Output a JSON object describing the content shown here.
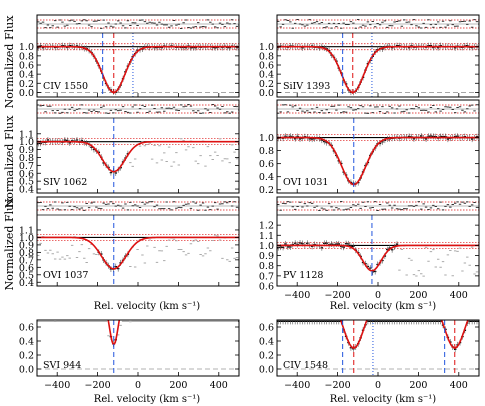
{
  "figure": {
    "ylabel": "Normalized Flux",
    "xlabel": "Rel. velocity  (km s⁻¹)"
  },
  "colors": {
    "data": "#000000",
    "model": "#dd1111",
    "residual": "#333333",
    "masked": "#aaaaaa",
    "sigma_band": "#dd1111",
    "marker_blue": "#2255dd",
    "marker_red": "#dd1111",
    "dotted_blue": "#2255dd",
    "zero_line": "#999999"
  },
  "chart_data": [
    {
      "type": "line",
      "title": "CIV 1550",
      "xlim": [
        -500,
        500
      ],
      "ylim": [
        -0.1,
        1.3
      ],
      "yticks": [
        "0.0",
        "0.2",
        "0.4",
        "0.6",
        "0.8",
        "1.0"
      ],
      "xticks": [],
      "center_v": -120,
      "width": 55,
      "depth": 1.0,
      "markers": [
        {
          "v": -175,
          "color": "blue"
        },
        {
          "v": -120,
          "color": "red"
        },
        {
          "v": -25,
          "color": "dotted"
        }
      ],
      "mask": []
    },
    {
      "type": "line",
      "title": "SiIV 1393",
      "xlim": [
        -500,
        500
      ],
      "ylim": [
        -0.1,
        1.3
      ],
      "yticks": [
        "0.0",
        "0.2",
        "0.4",
        "0.6",
        "0.8",
        "1.0"
      ],
      "xticks": [],
      "center_v": -125,
      "width": 55,
      "depth": 1.0,
      "markers": [
        {
          "v": -175,
          "color": "blue"
        },
        {
          "v": -125,
          "color": "red"
        },
        {
          "v": -30,
          "color": "dotted"
        }
      ],
      "mask": []
    },
    {
      "type": "line",
      "title": "SIV 1062",
      "xlim": [
        -500,
        500
      ],
      "ylim": [
        0.35,
        1.3
      ],
      "yticks": [
        "0.4",
        "0.5",
        "0.6",
        "0.7",
        "0.8",
        "0.9",
        "1.0",
        "1.1"
      ],
      "xticks": [],
      "center_v": -120,
      "width": 55,
      "depth": 0.38,
      "markers": [
        {
          "v": -120,
          "color": "blue"
        }
      ],
      "mask": [
        [
          -40,
          500
        ]
      ]
    },
    {
      "type": "line",
      "title": "OVI 1031",
      "xlim": [
        -500,
        500
      ],
      "ylim": [
        0.15,
        1.3
      ],
      "yticks": [
        "0.2",
        "0.4",
        "0.6",
        "0.8",
        "1.0"
      ],
      "xticks": [],
      "center_v": -120,
      "width": 60,
      "depth": 0.72,
      "markers": [
        {
          "v": -120,
          "color": "blue"
        }
      ],
      "mask": []
    },
    {
      "type": "line",
      "title": "OVI 1037",
      "xlim": [
        -500,
        500
      ],
      "ylim": [
        0.35,
        1.3
      ],
      "yticks": [
        "0.4",
        "0.5",
        "0.6",
        "0.7",
        "0.8",
        "0.9",
        "1.0",
        "1.1"
      ],
      "xticks": [],
      "center_v": -120,
      "width": 60,
      "depth": 0.42,
      "markers": [
        {
          "v": -120,
          "color": "blue"
        }
      ],
      "mask": [
        [
          -500,
          -200
        ],
        [
          -40,
          500
        ]
      ]
    },
    {
      "type": "line",
      "title": "PV 1128",
      "xlim": [
        -500,
        500
      ],
      "ylim": [
        0.6,
        1.3
      ],
      "yticks": [
        "0.6",
        "0.7",
        "0.8",
        "0.9",
        "1.0",
        "1.1",
        "1.2"
      ],
      "xticks": [
        "−400",
        "−200",
        "0",
        "200",
        "400"
      ],
      "center_v": -30,
      "width": 45,
      "depth": 0.25,
      "markers": [
        {
          "v": -30,
          "color": "blue"
        }
      ],
      "mask": [
        [
          100,
          500
        ]
      ]
    },
    {
      "type": "line",
      "title": "SVI 944",
      "xlim": [
        -500,
        500
      ],
      "ylim": [
        -0.1,
        0.7
      ],
      "yticks": [
        "0.0",
        "0.2",
        "0.4",
        "0.6"
      ],
      "xticks": [
        "−400",
        "−200",
        "0",
        "200",
        "400"
      ],
      "center_v": -120,
      "width": 22,
      "depth": 0.65,
      "markers": [
        {
          "v": -120,
          "color": "blue"
        }
      ],
      "mask": [
        [
          -500,
          -140
        ],
        [
          -100,
          500
        ]
      ]
    },
    {
      "type": "line",
      "title": "CIV 1548",
      "xlim": [
        -500,
        500
      ],
      "ylim": [
        -0.1,
        0.7
      ],
      "yticks": [
        "0.0",
        "0.2",
        "0.4",
        "0.6"
      ],
      "xticks": [
        "−400",
        "−200",
        "0",
        "200",
        "400"
      ],
      "center_v": -120,
      "width": 50,
      "depth": 0.7,
      "second_center_v": 380,
      "markers": [
        {
          "v": -175,
          "color": "blue"
        },
        {
          "v": -120,
          "color": "red"
        },
        {
          "v": -25,
          "color": "dotted"
        },
        {
          "v": 330,
          "color": "blue"
        },
        {
          "v": 380,
          "color": "red"
        }
      ],
      "mask": []
    }
  ]
}
